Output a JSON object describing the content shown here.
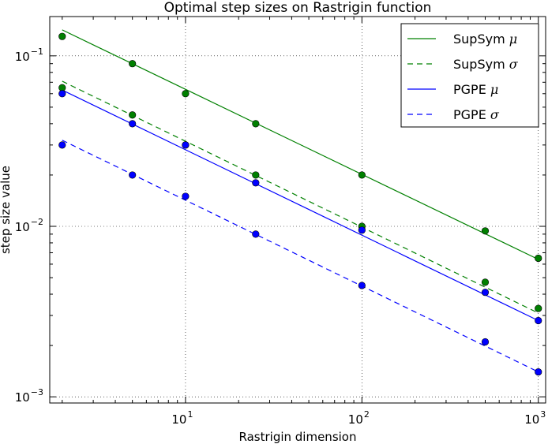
{
  "chart_data": {
    "type": "line",
    "title": "Optimal step sizes on Rastrigin function",
    "xlabel": "Rastrigin dimension",
    "ylabel": "step size value",
    "xscale": "log",
    "yscale": "log",
    "xlim": [
      1.7,
      1100
    ],
    "ylim": [
      0.00092,
      0.17
    ],
    "grid": true,
    "legend_position": "top-right",
    "x_ticks": [
      {
        "value": 10,
        "base": "10",
        "exp": "1"
      },
      {
        "value": 100,
        "base": "10",
        "exp": "2"
      },
      {
        "value": 1000,
        "base": "10",
        "exp": "3"
      }
    ],
    "y_ticks": [
      {
        "value": 0.001,
        "base": "10",
        "exp": "−3"
      },
      {
        "value": 0.01,
        "base": "10",
        "exp": "−2"
      },
      {
        "value": 0.1,
        "base": "10",
        "exp": "−1"
      }
    ],
    "series": [
      {
        "name": "SupSym",
        "symbol": "μ",
        "color": "#008000",
        "dash": "solid",
        "fit": [
          [
            2,
            0.142
          ],
          [
            1000,
            0.0064
          ]
        ],
        "points": [
          [
            2,
            0.13
          ],
          [
            5,
            0.09
          ],
          [
            10,
            0.06
          ],
          [
            25,
            0.04
          ],
          [
            100,
            0.02
          ],
          [
            500,
            0.0094
          ],
          [
            1000,
            0.0065
          ]
        ]
      },
      {
        "name": "SupSym",
        "symbol": "σ",
        "color": "#008000",
        "dash": "dashed",
        "fit": [
          [
            2,
            0.071
          ],
          [
            1000,
            0.0031
          ]
        ],
        "points": [
          [
            2,
            0.065
          ],
          [
            5,
            0.045
          ],
          [
            10,
            0.03
          ],
          [
            25,
            0.02
          ],
          [
            100,
            0.01
          ],
          [
            500,
            0.0047
          ],
          [
            1000,
            0.0033
          ]
        ]
      },
      {
        "name": "PGPE",
        "symbol": "μ",
        "color": "#0000ff",
        "dash": "solid",
        "fit": [
          [
            2,
            0.063
          ],
          [
            1000,
            0.0028
          ]
        ],
        "points": [
          [
            2,
            0.06
          ],
          [
            5,
            0.04
          ],
          [
            10,
            0.03
          ],
          [
            25,
            0.018
          ],
          [
            100,
            0.0095
          ],
          [
            500,
            0.0041
          ],
          [
            1000,
            0.0028
          ]
        ]
      },
      {
        "name": "PGPE",
        "symbol": "σ",
        "color": "#0000ff",
        "dash": "dashed",
        "fit": [
          [
            2,
            0.032
          ],
          [
            1000,
            0.0014
          ]
        ],
        "points": [
          [
            2,
            0.03
          ],
          [
            5,
            0.02
          ],
          [
            10,
            0.015
          ],
          [
            25,
            0.009
          ],
          [
            100,
            0.0045
          ],
          [
            500,
            0.0021
          ],
          [
            1000,
            0.0014
          ]
        ]
      }
    ]
  }
}
